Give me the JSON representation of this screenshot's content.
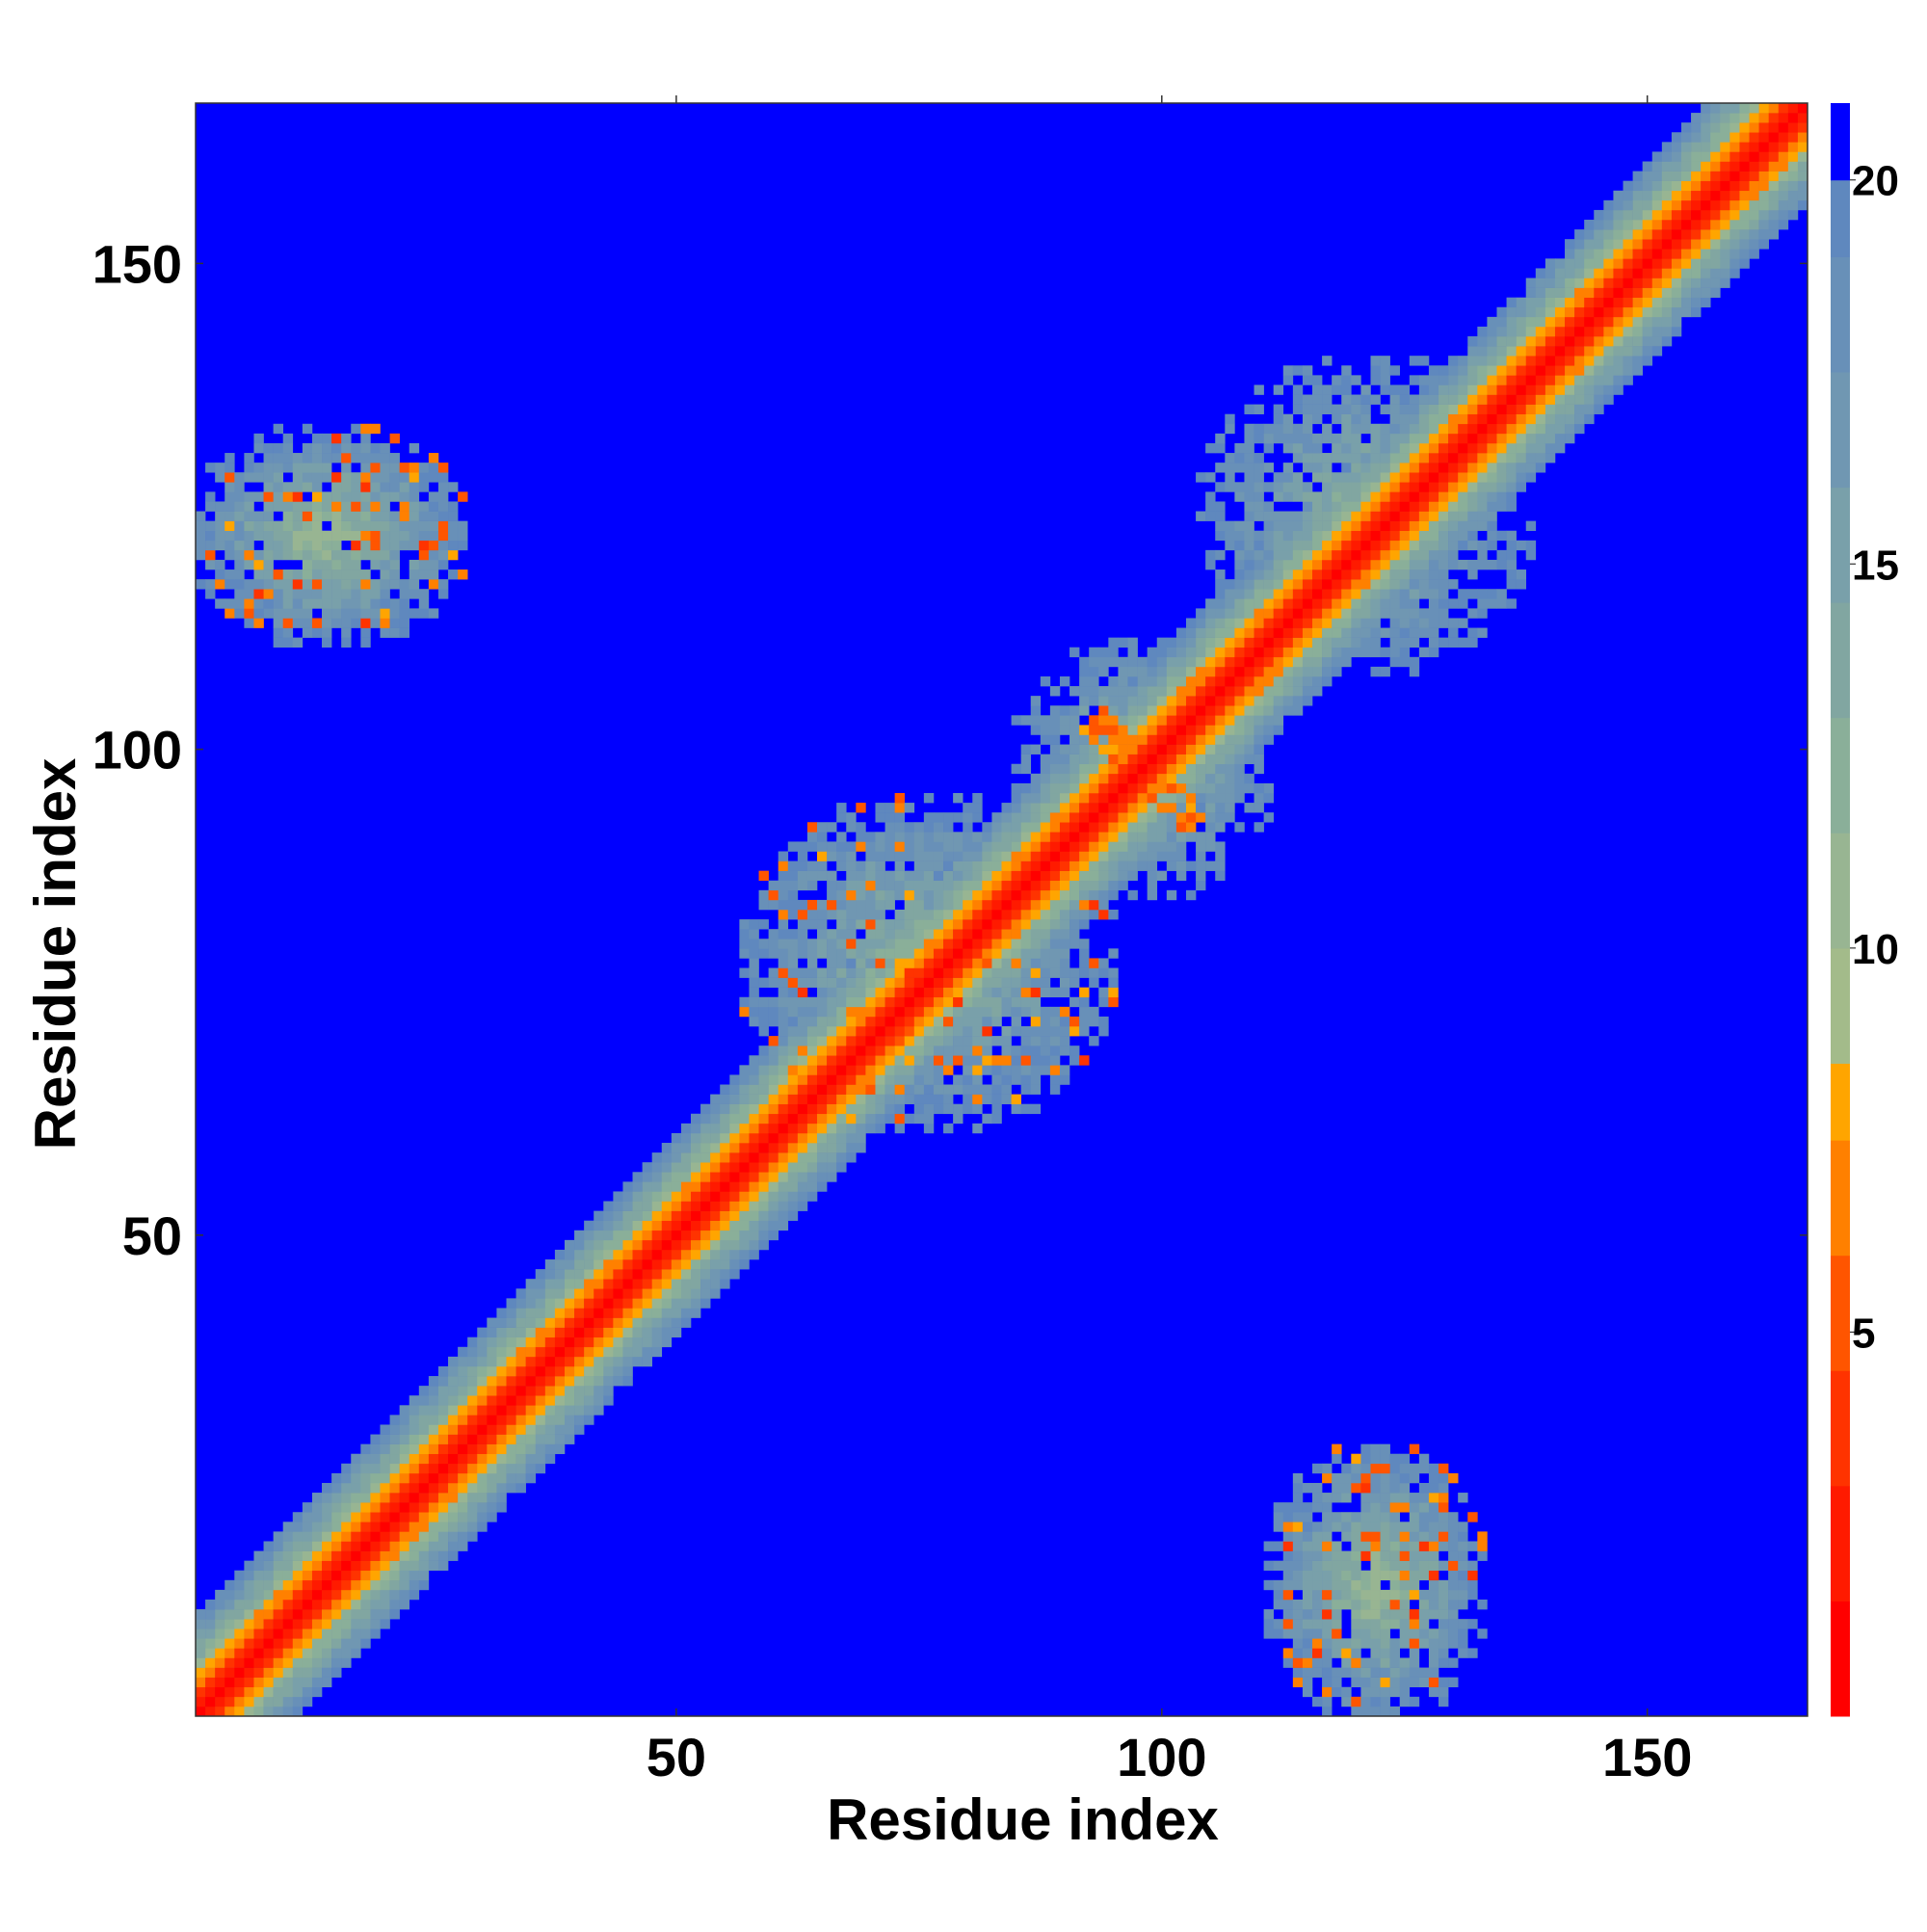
{
  "chart_data": {
    "type": "heatmap",
    "title": "",
    "xlabel": "Residue index",
    "ylabel": "Residue index",
    "x_range": [
      1,
      166
    ],
    "y_range": [
      1,
      166
    ],
    "x_ticks": [
      50,
      100,
      150
    ],
    "y_ticks": [
      50,
      100,
      150
    ],
    "colorbar": {
      "range": [
        0,
        21
      ],
      "ticks": [
        5,
        10,
        15,
        20
      ],
      "colors": [
        {
          "from": 0,
          "to": 1.5,
          "color": "#ff0000"
        },
        {
          "from": 1.5,
          "to": 3,
          "color": "#ff1a00"
        },
        {
          "from": 3,
          "to": 4.5,
          "color": "#ff3300"
        },
        {
          "from": 4.5,
          "to": 6,
          "color": "#ff5500"
        },
        {
          "from": 6,
          "to": 7.5,
          "color": "#ff8000"
        },
        {
          "from": 7.5,
          "to": 8.5,
          "color": "#ffa500"
        },
        {
          "from": 8.5,
          "to": 10,
          "color": "#a3bb8a"
        },
        {
          "from": 10,
          "to": 11.5,
          "color": "#98b592"
        },
        {
          "from": 11.5,
          "to": 13,
          "color": "#8aaf99"
        },
        {
          "from": 13,
          "to": 14.5,
          "color": "#81a6a1"
        },
        {
          "from": 14.5,
          "to": 16,
          "color": "#79a0aa"
        },
        {
          "from": 16,
          "to": 17.5,
          "color": "#7097b2"
        },
        {
          "from": 17.5,
          "to": 19,
          "color": "#6890b8"
        },
        {
          "from": 19,
          "to": 20,
          "color": "#5f88be"
        },
        {
          "from": 20,
          "to": 21,
          "color": "#0000ff"
        }
      ]
    },
    "background_value": 21,
    "features": {
      "diagonal_band": {
        "core_half_width_residues": 2,
        "band_half_width_residues": 10
      },
      "contact_clusters": [
        {
          "x_range": [
            1,
            30
          ],
          "y_range": [
            110,
            134
          ],
          "symmetric": true
        },
        {
          "x_range": [
            57,
            95
          ],
          "y_range": [
            58,
            94
          ],
          "symmetric": false
        },
        {
          "x_range": [
            82,
            110
          ],
          "y_range": [
            82,
            112
          ],
          "symmetric": false
        },
        {
          "x_range": [
            105,
            140
          ],
          "y_range": [
            110,
            140
          ],
          "symmetric": false
        }
      ]
    }
  }
}
